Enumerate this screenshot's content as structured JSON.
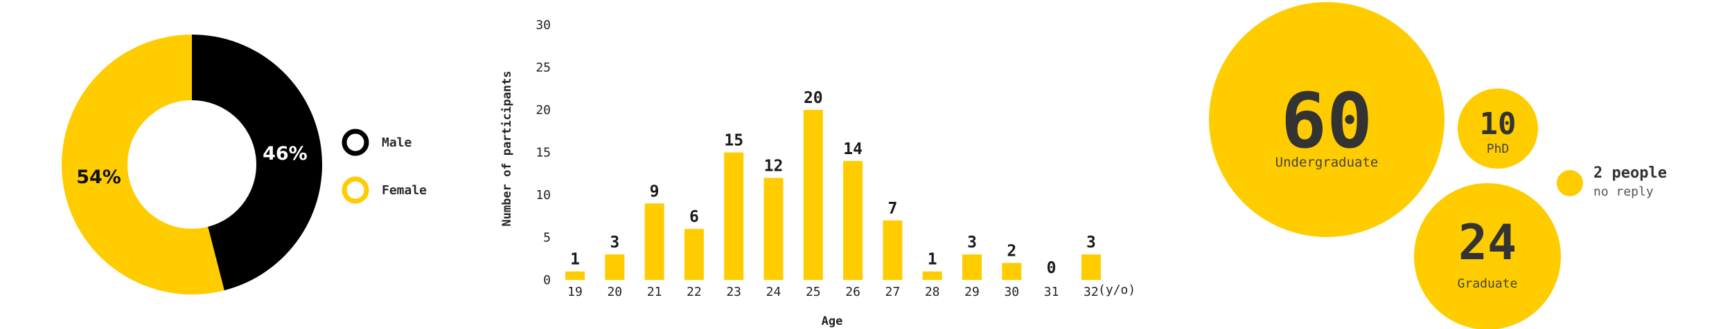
{
  "colors": {
    "accent": "#FFCC00",
    "dark": "#000000",
    "text": "#222222"
  },
  "chart_data": [
    {
      "type": "pie",
      "subtype": "donut",
      "slices": [
        {
          "name": "Male",
          "value": 46,
          "label": "46%",
          "color": "#000000"
        },
        {
          "name": "Female",
          "value": 54,
          "label": "54%",
          "color": "#FFCC00"
        }
      ],
      "legend": [
        {
          "name": "Male",
          "color": "#000000"
        },
        {
          "name": "Female",
          "color": "#FFCC00"
        }
      ],
      "legend_position": "right"
    },
    {
      "type": "bar",
      "categories": [
        "19",
        "20",
        "21",
        "22",
        "23",
        "24",
        "25",
        "26",
        "27",
        "28",
        "29",
        "30",
        "31",
        "32"
      ],
      "values": [
        1,
        3,
        9,
        6,
        15,
        12,
        20,
        14,
        7,
        1,
        3,
        2,
        0,
        3
      ],
      "xlabel": "Age",
      "ylabel": "Number of participants",
      "x_unit": "(y/o)",
      "ylim": [
        0,
        30
      ],
      "yticks": [
        0,
        5,
        10,
        15,
        20,
        25,
        30
      ],
      "color": "#FFCC00",
      "grid": false
    },
    {
      "type": "bubble",
      "bubbles": [
        {
          "value": 60,
          "label": "Undergraduate"
        },
        {
          "value": 10,
          "label": "PhD"
        },
        {
          "value": 24,
          "label": "Graduate"
        }
      ],
      "no_reply": {
        "count": "2 people",
        "text": "no reply"
      },
      "color": "#FFCC00"
    }
  ]
}
